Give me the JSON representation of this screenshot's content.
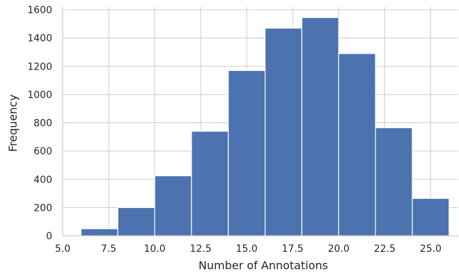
{
  "chart_data": {
    "type": "bar",
    "title": "",
    "xlabel": "Number of Annotations",
    "ylabel": "Frequency",
    "xlim": [
      5.0,
      26.5
    ],
    "ylim": [
      0,
      1620
    ],
    "x_ticks": [
      5.0,
      7.5,
      10.0,
      12.5,
      15.0,
      17.5,
      20.0,
      22.5,
      25.0
    ],
    "x_tick_labels": [
      "5.0",
      "7.5",
      "10.0",
      "12.5",
      "15.0",
      "17.5",
      "20.0",
      "22.5",
      "25.0"
    ],
    "y_ticks": [
      0,
      200,
      400,
      600,
      800,
      1000,
      1200,
      1400,
      1600
    ],
    "y_tick_labels": [
      "0",
      "200",
      "400",
      "600",
      "800",
      "1000",
      "1200",
      "1400",
      "1600"
    ],
    "bins": [
      {
        "x0": 6,
        "x1": 8,
        "value": 50
      },
      {
        "x0": 8,
        "x1": 10,
        "value": 200
      },
      {
        "x0": 10,
        "x1": 12,
        "value": 425
      },
      {
        "x0": 12,
        "x1": 14,
        "value": 740
      },
      {
        "x0": 14,
        "x1": 16,
        "value": 1170
      },
      {
        "x0": 16,
        "x1": 18,
        "value": 1470
      },
      {
        "x0": 18,
        "x1": 20,
        "value": 1545
      },
      {
        "x0": 20,
        "x1": 22,
        "value": 1290
      },
      {
        "x0": 22,
        "x1": 24,
        "value": 765
      },
      {
        "x0": 24,
        "x1": 26,
        "value": 265
      }
    ],
    "grid": true,
    "colors": {
      "bar": "#4c72b0",
      "bar_edge": "#ffffff",
      "grid": "#cccccc",
      "axes": "#cccccc",
      "text": "#262626"
    }
  }
}
